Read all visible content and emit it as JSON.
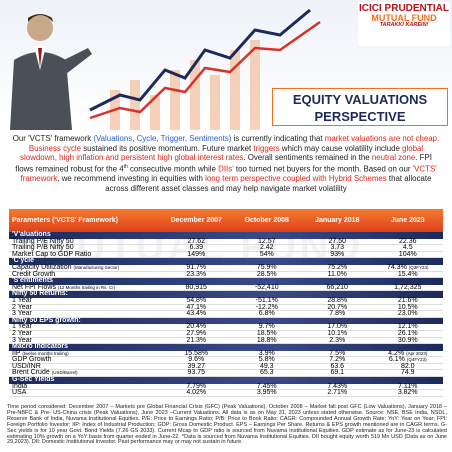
{
  "header": {
    "logo": {
      "brand": "ICICI PRUDENTIAL",
      "product": "MUTUAL FUND",
      "tagline": "TARAKKI KAREIN!"
    },
    "title": [
      "EQUITY VALUATIONS",
      "PERSPECTIVE"
    ]
  },
  "intro": [
    {
      "text": "Our 'VCTS' framework ",
      "style": "plain"
    },
    {
      "text": "(Valuations, Cycle, Trigger, Sentiments)",
      "style": "blue"
    },
    {
      "text": " is currently indicating that ",
      "style": "plain"
    },
    {
      "text": "market valuations are not cheap. Business cycle",
      "style": "red"
    },
    {
      "text": " sustained its positive momentum. Future market ",
      "style": "plain"
    },
    {
      "text": "triggers",
      "style": "red"
    },
    {
      "text": " which may cause volatility include ",
      "style": "plain"
    },
    {
      "text": "global slowdown, high inflation and persistent high global interest rates",
      "style": "red"
    },
    {
      "text": ". Overall sentiments remained in the ",
      "style": "plain"
    },
    {
      "text": "neutral zone",
      "style": "red"
    },
    {
      "text": ". FPI flows remained robust for the 4",
      "style": "plain"
    },
    {
      "text": "th",
      "style": "sup"
    },
    {
      "text": " consecutive month while ",
      "style": "plain"
    },
    {
      "text": "DIIs'",
      "style": "red"
    },
    {
      "text": " too turned net buyers for the month. Based on our ",
      "style": "plain"
    },
    {
      "text": "'VCTS' framework",
      "style": "red"
    },
    {
      "text": ", we recommend investing in equities with ",
      "style": "plain"
    },
    {
      "text": "long term perspective coupled with Hybrid Schemes",
      "style": "red"
    },
    {
      "text": " that allocate across different asset classes and may help navigate market volatility",
      "style": "plain"
    }
  ],
  "watermark": "MUTUAL FUND",
  "table": {
    "columns": [
      "Parameters ('VCTS' Framework)",
      "December 2007",
      "October 2008",
      "January 2018",
      "June 2023"
    ],
    "sections": [
      {
        "title": "'V'aluations",
        "rows": [
          {
            "label": "Trailing P/E Nifty 50",
            "values": [
              "27.62",
              "12.57",
              "27.50",
              "22.36"
            ]
          },
          {
            "label": "Trailing P/B Nifty 50",
            "values": [
              "6.39",
              "2.42",
              "3.73",
              "4.5"
            ]
          },
          {
            "label": "Market Cap to GDP Ratio",
            "values": [
              "149%",
              "54%",
              "93%",
              "104%"
            ]
          }
        ]
      },
      {
        "title": "'C'ycle",
        "rows": [
          {
            "label": "Capacity Utilization",
            "note": "(Manufacturing Sector)",
            "values": [
              "91.7%",
              "75.9%",
              "75.2%",
              "74.3%"
            ],
            "last_note": "(Q3FY23)"
          },
          {
            "label": "Credit Growth",
            "values": [
              "23.3%",
              "28.5%",
              "11.0%",
              "15.4%"
            ]
          }
        ]
      },
      {
        "title": "'S'entiments",
        "rows": [
          {
            "label": "Net FPI Flows",
            "note": "(12 Months trailing in Rs. Cr)",
            "values": [
              "80,915",
              "-52,410",
              "66,210",
              "1,72,325"
            ]
          }
        ]
      },
      {
        "title": "Nifty 50 Returns:",
        "rows": [
          {
            "label": "1 Year",
            "values": [
              "54.8%",
              "-51.1%",
              "28.8%",
              "21.6%"
            ]
          },
          {
            "label": "2 Year",
            "values": [
              "47.1%",
              "-12.2%",
              "20.7%",
              "10.5%"
            ]
          },
          {
            "label": "3 Year",
            "values": [
              "43.4%",
              "6.8%",
              "7.8%",
              "23.0%"
            ]
          }
        ]
      },
      {
        "title": "Nifty 50 EPS growth:",
        "rows": [
          {
            "label": "1 Year",
            "values": [
              "20.4%",
              "9.7%",
              "17.0%",
              "12.1%"
            ]
          },
          {
            "label": "2 Year",
            "values": [
              "27.9%",
              "18.5%",
              "10.1%",
              "26.1%"
            ]
          },
          {
            "label": "3 Year",
            "values": [
              "21.3%",
              "18.8%",
              "2.3%",
              "30.9%"
            ]
          }
        ]
      },
      {
        "title": "Macro Indicators",
        "rows": [
          {
            "label": "IIP",
            "note": "(twelve months trailing)",
            "values": [
              "15.58%",
              "3.9%",
              "7.5%",
              "4.2%"
            ],
            "last_note": "(Apr 2023)"
          },
          {
            "label": "GDP Growth",
            "values": [
              "9.6%",
              "5.8%",
              "7.2%",
              "6.1%"
            ],
            "last_note": "(Q4FY23)"
          },
          {
            "label": "USD/INR",
            "values": [
              "39.27",
              "49.3",
              "63.6",
              "82.0"
            ]
          },
          {
            "label": "Brent Crude",
            "note": "(USD/Barrel)",
            "values": [
              "93.75",
              "65.3",
              "69.1",
              "74.9"
            ]
          }
        ]
      },
      {
        "title": "G-Sec Yields",
        "rows": [
          {
            "label": "India",
            "values": [
              "7.79%",
              "7.45%",
              "7.43%",
              "7.11%"
            ]
          },
          {
            "label": "USA",
            "values": [
              "4.02%",
              "3.95%",
              "2.71%",
              "3.82%"
            ]
          }
        ]
      }
    ]
  },
  "footnote": "Time period considered: December 2007 – Markets pre Global Financial Crisis (GFC) (Peak Valuations), October 2008 – Market fall post GFC (Low Valuations), January 2018 – Pre-NBFC & Pre- US-China crisis (Peak Valuations), June 2023 –Current Valuations. All data is as on May 31, 2023 unless stated otherwise. Source: NSE, BSE India, NSDL, Reserve Bank of India, Nuvama Institutional Equities. P/E: Price to Earnings Ratio; P/B: Price to Book Ratio; CAGR: Compounded Annual Growth Rate; YoY: Year on Year; FPI: Foreign Portfolio Investor; IIP: Index of Industrial Production; GDP: Gross Domestic Product. EPS – Earnings Per Share. Returns & EPS growth mentioned are in CAGR terms. G-Sec yields is for 10 year Govt. Bond Yields (7.26 GS 2033). Current Mcap to GDP ratio is sourced from Nuvama Institutional Equities. GDP estimate as for June-23 is calculated estimating 10% growth on a YoY basis from quarter ended in June-22. ^Data is sourced from Nuvama Institutional Equities. DII bought equity worth 519 Mn USD (Data as on June 29,2023). DII: Domestic Institutional Investor. Past performance may or may not sustain in future."
}
